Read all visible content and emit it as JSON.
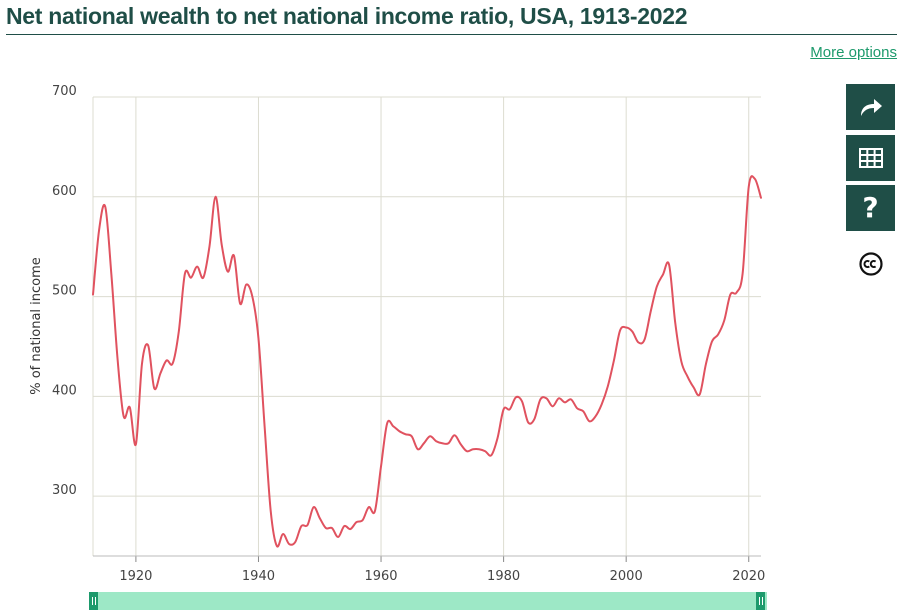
{
  "header": {
    "title": "Net national wealth to net national income ratio, USA, 1913-2022",
    "more_options_label": "More options"
  },
  "toolbar": {
    "share_icon": "share-arrow-icon",
    "table_icon": "table-grid-icon",
    "help_label": "?",
    "license_icon": "creative-commons-icon"
  },
  "colors": {
    "title": "#1f4e47",
    "line": "#e0525f",
    "accent": "#1d9a6c",
    "slider": "#9de8c6",
    "grid": "#dcdcd0"
  },
  "chart_data": {
    "type": "line",
    "title": "Net national wealth to net national income ratio, USA, 1913-2022",
    "xlabel": "",
    "ylabel": "% of national income",
    "xlim": [
      1913,
      2022
    ],
    "ylim": [
      240,
      700
    ],
    "x_ticks": [
      1920,
      1940,
      1960,
      1980,
      2000,
      2020
    ],
    "y_ticks": [
      300,
      400,
      500,
      600,
      700
    ],
    "grid": true,
    "series": [
      {
        "name": "Net national wealth to net national income ratio",
        "x": [
          1913,
          1914,
          1915,
          1916,
          1917,
          1918,
          1919,
          1920,
          1921,
          1922,
          1923,
          1924,
          1925,
          1926,
          1927,
          1928,
          1929,
          1930,
          1931,
          1932,
          1933,
          1934,
          1935,
          1936,
          1937,
          1938,
          1939,
          1940,
          1941,
          1942,
          1943,
          1944,
          1945,
          1946,
          1947,
          1948,
          1949,
          1950,
          1951,
          1952,
          1953,
          1954,
          1955,
          1956,
          1957,
          1958,
          1959,
          1960,
          1961,
          1962,
          1963,
          1964,
          1965,
          1966,
          1967,
          1968,
          1969,
          1970,
          1971,
          1972,
          1973,
          1974,
          1975,
          1976,
          1977,
          1978,
          1979,
          1980,
          1981,
          1982,
          1983,
          1984,
          1985,
          1986,
          1987,
          1988,
          1989,
          1990,
          1991,
          1992,
          1993,
          1994,
          1995,
          1996,
          1997,
          1998,
          1999,
          2000,
          2001,
          2002,
          2003,
          2004,
          2005,
          2006,
          2007,
          2008,
          2009,
          2010,
          2011,
          2012,
          2013,
          2014,
          2015,
          2016,
          2017,
          2018,
          2019,
          2020,
          2021,
          2022
        ],
        "values": [
          502,
          567,
          590,
          522,
          438,
          380,
          389,
          352,
          433,
          451,
          408,
          423,
          436,
          433,
          465,
          523,
          519,
          530,
          519,
          550,
          600,
          552,
          525,
          541,
          493,
          512,
          500,
          458,
          370,
          285,
          250,
          262,
          252,
          254,
          270,
          271,
          289,
          278,
          268,
          268,
          259,
          270,
          267,
          274,
          276,
          289,
          285,
          330,
          373,
          370,
          365,
          362,
          360,
          347,
          353,
          360,
          355,
          353,
          353,
          361,
          352,
          345,
          347,
          347,
          345,
          341,
          358,
          387,
          387,
          399,
          395,
          374,
          377,
          397,
          398,
          390,
          398,
          394,
          397,
          388,
          385,
          375,
          380,
          392,
          410,
          436,
          466,
          469,
          465,
          454,
          457,
          485,
          510,
          522,
          532,
          474,
          435,
          420,
          409,
          402,
          432,
          455,
          462,
          476,
          502,
          504,
          523,
          610,
          618,
          599
        ]
      }
    ]
  }
}
